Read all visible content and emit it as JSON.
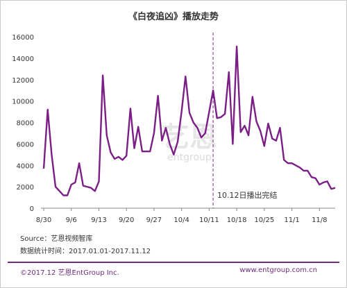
{
  "chart_data": {
    "type": "line",
    "title": "《白夜追凶》播放走势",
    "color": "#7b1f86",
    "ylim": [
      0,
      16000
    ],
    "yticks": [
      0,
      2000,
      4000,
      6000,
      8000,
      10000,
      12000,
      14000,
      16000
    ],
    "xlim": [
      "2017-08-30",
      "2017-11-12"
    ],
    "xtick_labels": [
      {
        "label": "8/30",
        "date": "2017-08-30"
      },
      {
        "label": "9/6",
        "date": "2017-09-06"
      },
      {
        "label": "9/13",
        "date": "2017-09-13"
      },
      {
        "label": "9/20",
        "date": "2017-09-20"
      },
      {
        "label": "9/27",
        "date": "2017-09-27"
      },
      {
        "label": "10/4",
        "date": "2017-10-04"
      },
      {
        "label": "10/11",
        "date": "2017-10-11"
      },
      {
        "label": "10/18",
        "date": "2017-10-18"
      },
      {
        "label": "10/25",
        "date": "2017-10-25"
      },
      {
        "label": "11/1",
        "date": "2017-11-01"
      },
      {
        "label": "11/8",
        "date": "2017-11-08"
      }
    ],
    "series": [
      {
        "x": [
          "2017-08-30",
          "2017-08-31",
          "2017-09-01",
          "2017-09-02",
          "2017-09-03",
          "2017-09-04",
          "2017-09-05",
          "2017-09-06",
          "2017-09-07",
          "2017-09-08",
          "2017-09-09",
          "2017-09-10",
          "2017-09-11",
          "2017-09-12",
          "2017-09-13",
          "2017-09-14",
          "2017-09-15",
          "2017-09-16",
          "2017-09-17",
          "2017-09-18",
          "2017-09-19",
          "2017-09-20",
          "2017-09-21",
          "2017-09-22",
          "2017-09-23",
          "2017-09-24",
          "2017-09-25",
          "2017-09-26",
          "2017-09-27",
          "2017-09-28",
          "2017-09-29",
          "2017-09-30",
          "2017-10-01",
          "2017-10-02",
          "2017-10-03",
          "2017-10-04",
          "2017-10-05",
          "2017-10-06",
          "2017-10-07",
          "2017-10-08",
          "2017-10-09",
          "2017-10-10",
          "2017-10-11",
          "2017-10-12",
          "2017-10-13",
          "2017-10-14",
          "2017-10-15",
          "2017-10-16",
          "2017-10-17",
          "2017-10-18",
          "2017-10-19",
          "2017-10-20",
          "2017-10-21",
          "2017-10-22",
          "2017-10-23",
          "2017-10-24",
          "2017-10-25",
          "2017-10-26",
          "2017-10-27",
          "2017-10-28",
          "2017-10-29",
          "2017-10-30",
          "2017-10-31",
          "2017-11-01",
          "2017-11-02",
          "2017-11-03",
          "2017-11-04",
          "2017-11-05",
          "2017-11-06",
          "2017-11-07",
          "2017-11-08",
          "2017-11-09",
          "2017-11-10",
          "2017-11-11",
          "2017-11-12"
        ],
        "values": [
          3700,
          9200,
          5000,
          2000,
          1600,
          1200,
          1200,
          2200,
          2400,
          4200,
          2100,
          2000,
          1900,
          1600,
          2500,
          12400,
          6800,
          5200,
          4600,
          4800,
          4500,
          4900,
          9300,
          5600,
          7600,
          5300,
          5300,
          5300,
          7000,
          10500,
          6300,
          7500,
          6000,
          5000,
          6200,
          9000,
          12300,
          8900,
          8000,
          7500,
          6600,
          7000,
          9000,
          11000,
          8400,
          8500,
          8800,
          12700,
          6000,
          15100,
          7100,
          7700,
          6800,
          10400,
          8100,
          7200,
          5800,
          7900,
          6500,
          6300,
          7500,
          4500,
          4200,
          4200,
          4000,
          3800,
          3500,
          3500,
          2900,
          2800,
          2200,
          2400,
          2500,
          1800,
          1900
        ]
      }
    ],
    "annotations": [
      {
        "text": "10.12日播出完结",
        "x": "2017-10-12"
      }
    ],
    "watermark": {
      "logo": "艺恩",
      "subtitle": "entgroup"
    }
  },
  "notes": {
    "source": "Source：艺恩视频智库",
    "time": "数据统计时间：2017.01.01-2017.11.12"
  },
  "footer": {
    "copyright": "©2017.12 艺恩EntGroup Inc.",
    "website": "www.entgroup.com.cn"
  }
}
